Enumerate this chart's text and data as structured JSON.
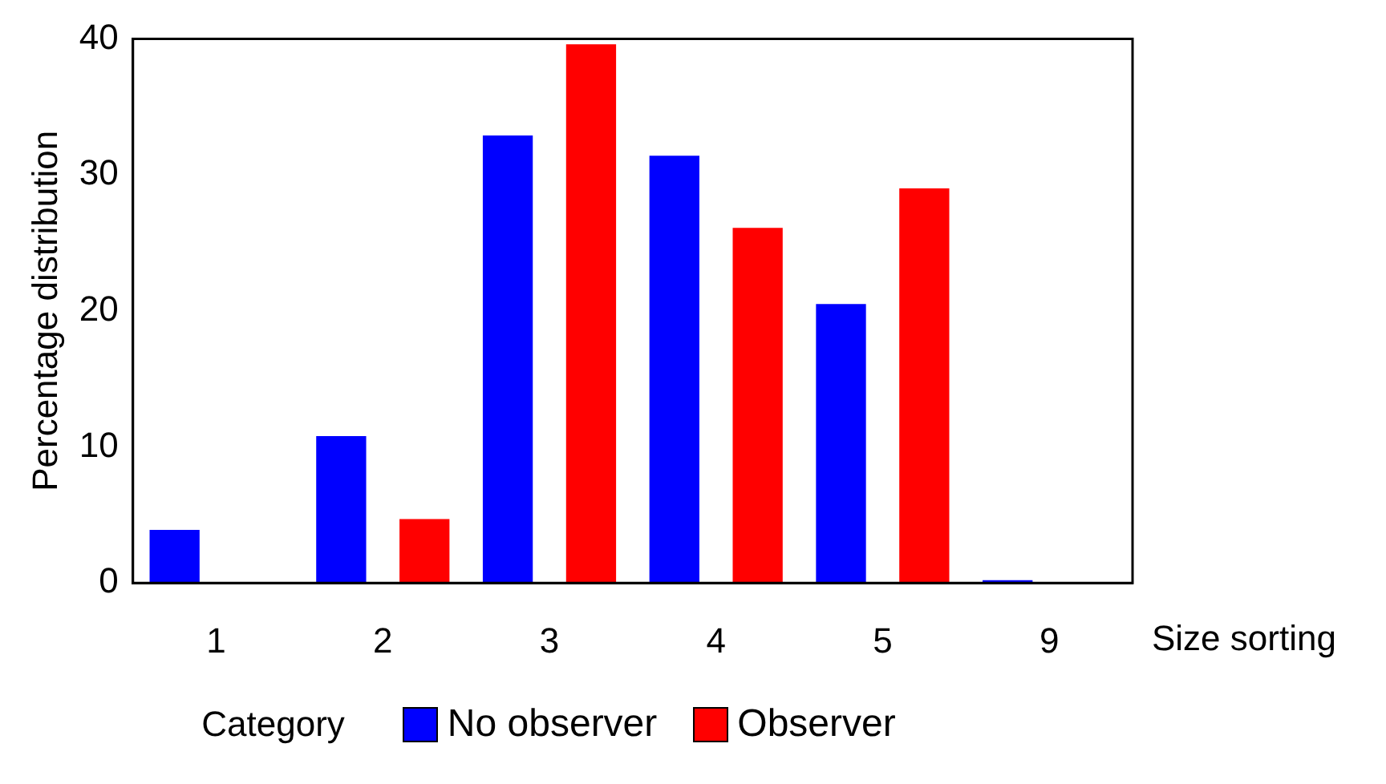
{
  "chart_data": {
    "type": "bar",
    "xlabel": "Size sorting",
    "ylabel": "Percentage distribution",
    "legend_title": "Category",
    "categories": [
      "1",
      "2",
      "3",
      "4",
      "5",
      "9"
    ],
    "series": [
      {
        "name": "No observer",
        "color": "#0000ff",
        "values": [
          3.9,
          10.8,
          32.9,
          31.4,
          20.5,
          0.2
        ]
      },
      {
        "name": "Observer",
        "color": "#ff0000",
        "values": [
          0,
          4.7,
          39.6,
          26.1,
          29.0,
          0
        ]
      }
    ],
    "ylim": [
      0,
      40
    ],
    "yticks": [
      0,
      10,
      20,
      30,
      40
    ],
    "grid": false,
    "legend": "bottom"
  }
}
